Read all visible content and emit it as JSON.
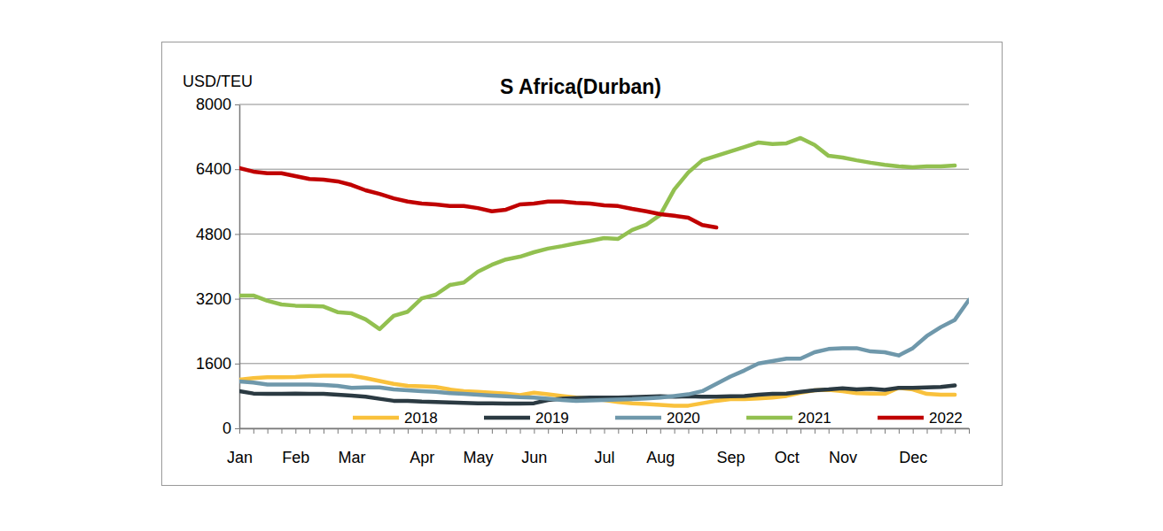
{
  "chart_data": {
    "type": "line",
    "title": "S Africa(Durban)",
    "y_label": "USD/TEU",
    "categories": [
      "Jan",
      null,
      null,
      null,
      "Feb",
      null,
      null,
      null,
      "Mar",
      null,
      null,
      null,
      null,
      "Apr",
      null,
      null,
      null,
      "May",
      null,
      null,
      null,
      "Jun",
      null,
      null,
      null,
      null,
      "Jul",
      null,
      null,
      null,
      "Aug",
      null,
      null,
      null,
      null,
      "Sep",
      null,
      null,
      null,
      "Oct",
      null,
      null,
      null,
      "Nov",
      null,
      null,
      null,
      null,
      "Dec",
      null,
      null,
      null,
      null
    ],
    "series": [
      {
        "name": "2018",
        "color": "#f9c13c",
        "values": [
          1200,
          1240,
          1260,
          1260,
          1270,
          1290,
          1300,
          1300,
          1300,
          1240,
          1170,
          1100,
          1050,
          1040,
          1020,
          960,
          920,
          900,
          880,
          860,
          820,
          880,
          840,
          800,
          760,
          740,
          700,
          650,
          620,
          600,
          580,
          560,
          560,
          620,
          680,
          720,
          720,
          740,
          760,
          800,
          880,
          940,
          950,
          920,
          870,
          860,
          850,
          1000,
          960,
          850,
          830,
          830,
          null
        ]
      },
      {
        "name": "2019",
        "color": "#2b3a42",
        "values": [
          920,
          860,
          850,
          850,
          860,
          850,
          850,
          830,
          810,
          780,
          730,
          680,
          680,
          660,
          650,
          640,
          630,
          620,
          620,
          610,
          610,
          620,
          700,
          730,
          750,
          760,
          760,
          760,
          770,
          780,
          790,
          780,
          790,
          780,
          780,
          790,
          800,
          830,
          850,
          860,
          900,
          940,
          960,
          990,
          960,
          980,
          950,
          1000,
          1000,
          1010,
          1020,
          1060,
          null
        ]
      },
      {
        "name": "2020",
        "color": "#6f98ab",
        "values": [
          1160,
          1130,
          1080,
          1080,
          1080,
          1080,
          1070,
          1050,
          1000,
          1010,
          1010,
          960,
          940,
          920,
          900,
          870,
          850,
          830,
          810,
          790,
          770,
          760,
          730,
          700,
          680,
          690,
          700,
          710,
          720,
          740,
          760,
          800,
          840,
          920,
          1100,
          1280,
          1430,
          1600,
          1660,
          1720,
          1720,
          1880,
          1960,
          1980,
          1980,
          1900,
          1880,
          1800,
          1980,
          2280,
          2500,
          2680,
          3170
        ]
      },
      {
        "name": "2021",
        "color": "#92c050",
        "values": [
          3280,
          3280,
          3150,
          3060,
          3030,
          3020,
          3010,
          2870,
          2840,
          2690,
          2450,
          2780,
          2880,
          3210,
          3300,
          3540,
          3600,
          3870,
          4040,
          4170,
          4240,
          4350,
          4440,
          4500,
          4570,
          4630,
          4700,
          4680,
          4900,
          5030,
          5270,
          5900,
          6320,
          6620,
          6730,
          6840,
          6950,
          7060,
          7020,
          7040,
          7170,
          7000,
          6730,
          6690,
          6620,
          6560,
          6510,
          6470,
          6450,
          6470,
          6470,
          6490,
          null
        ]
      },
      {
        "name": "2022",
        "color": "#c00000",
        "values": [
          6430,
          6340,
          6300,
          6300,
          6230,
          6160,
          6140,
          6100,
          6010,
          5880,
          5790,
          5680,
          5600,
          5550,
          5530,
          5490,
          5490,
          5440,
          5360,
          5400,
          5530,
          5550,
          5600,
          5600,
          5570,
          5550,
          5510,
          5490,
          5420,
          5360,
          5290,
          5250,
          5200,
          5020,
          4960,
          null,
          null,
          null,
          null,
          null,
          null,
          null,
          null,
          null,
          null,
          null,
          null,
          null,
          null,
          null,
          null,
          null,
          null
        ]
      }
    ],
    "ylim": [
      0,
      8000
    ],
    "yticks": [
      0,
      1600,
      3200,
      4800,
      6400,
      8000
    ],
    "grid": true,
    "legend": "bottom"
  }
}
